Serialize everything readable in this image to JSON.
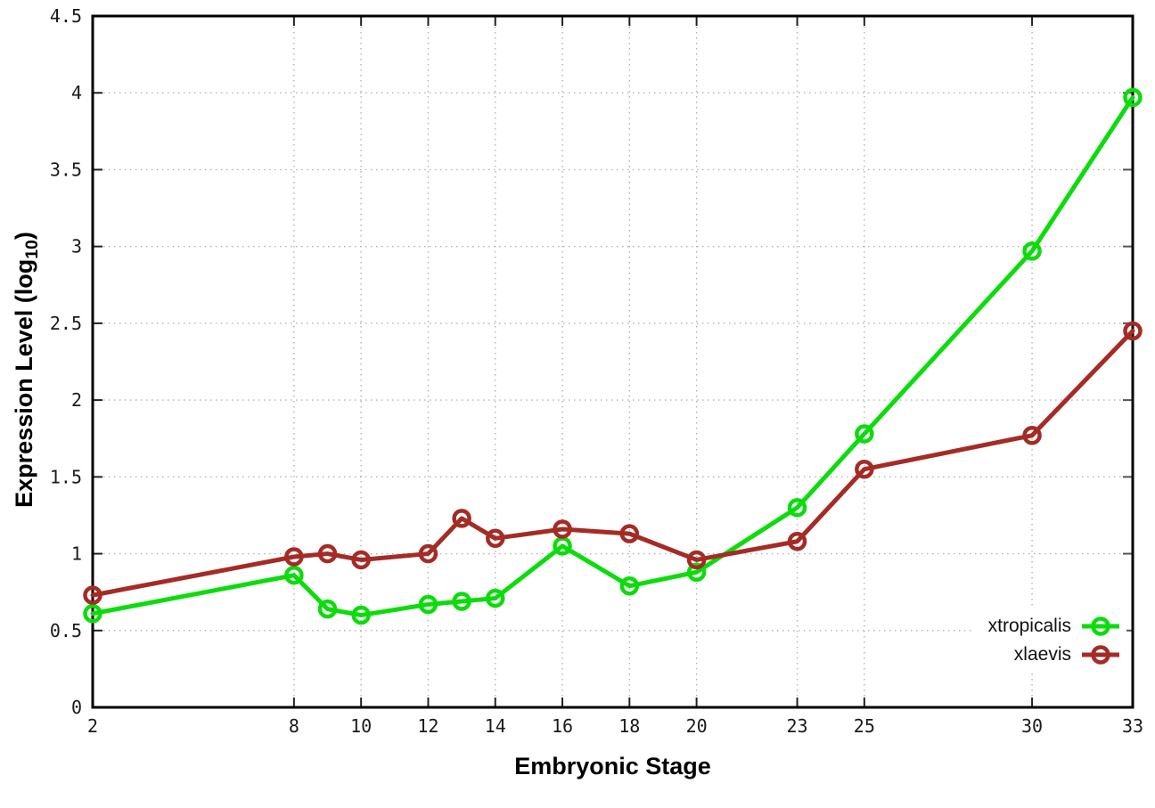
{
  "figure": {
    "xlabel": "Embryonic Stage",
    "ylabel_prefix": "Expression Level (log",
    "ylabel_sub": "10",
    "ylabel_suffix": ")",
    "background_color": "#ffffff",
    "grid_color": "#b3b3b3",
    "border_color": "#000000"
  },
  "chart_data": {
    "type": "line",
    "title": "",
    "xlabel": "Embryonic Stage",
    "ylabel": "Expression Level (log10)",
    "x": [
      2,
      8,
      9,
      10,
      12,
      13,
      14,
      16,
      18,
      20,
      23,
      25,
      30,
      33
    ],
    "xticks": [
      2,
      8,
      10,
      12,
      14,
      16,
      18,
      20,
      23,
      25,
      30,
      33
    ],
    "xtick_labels": [
      "2",
      "8",
      "10",
      "12",
      "14",
      "16",
      "18",
      "20",
      "23",
      "25",
      "30",
      "33"
    ],
    "yticks": [
      0,
      0.5,
      1,
      1.5,
      2,
      2.5,
      3,
      3.5,
      4,
      4.5
    ],
    "ytick_labels": [
      "0",
      "0.5",
      "1",
      "1.5",
      "2",
      "2.5",
      "3",
      "3.5",
      "4",
      "4.5"
    ],
    "xlim": [
      2,
      33
    ],
    "ylim": [
      0,
      4.5
    ],
    "grid": true,
    "legend_position": "bottom-right",
    "series": [
      {
        "name": "xtropicalis",
        "color": "#0cdc0c",
        "values": [
          0.61,
          0.86,
          0.64,
          0.6,
          0.67,
          0.69,
          0.71,
          1.05,
          0.79,
          0.88,
          1.3,
          1.78,
          2.97,
          3.97
        ]
      },
      {
        "name": "xlaevis",
        "color": "#a42b26",
        "values": [
          0.73,
          0.98,
          1.0,
          0.96,
          1.0,
          1.23,
          1.1,
          1.16,
          1.13,
          0.96,
          1.08,
          1.55,
          1.77,
          2.45
        ]
      }
    ]
  }
}
